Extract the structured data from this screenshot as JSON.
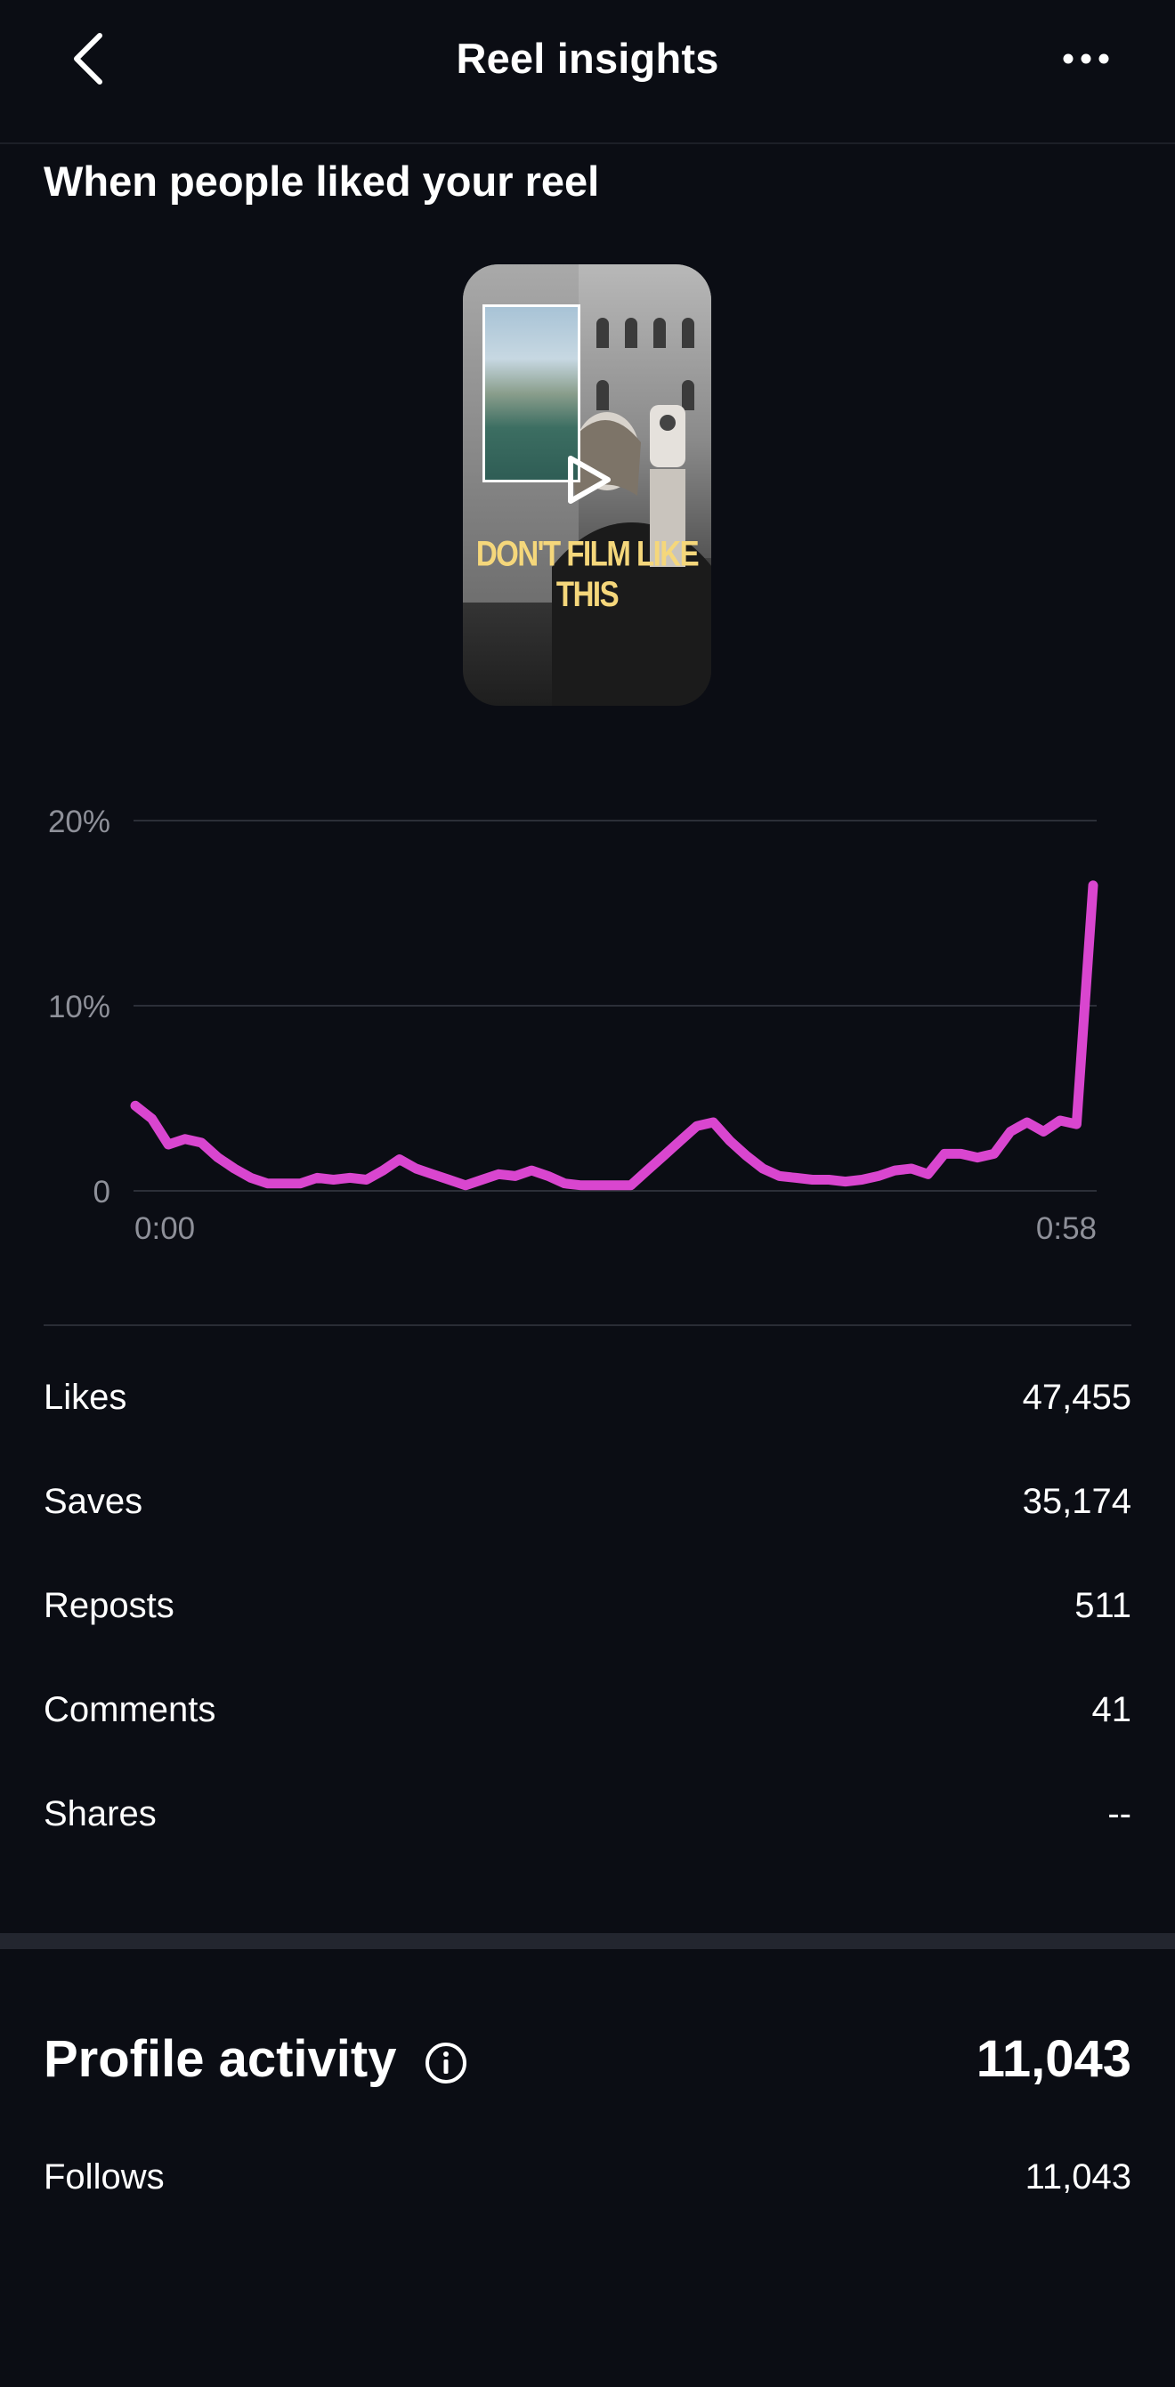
{
  "header": {
    "title": "Reel insights",
    "back_icon": "chevron-left-icon",
    "more_icon": "more-horizontal-icon"
  },
  "likes_section": {
    "title": "When people liked your reel",
    "thumbnail": {
      "caption": "DON'T FILM LIKE THIS",
      "play_icon": "play-icon"
    }
  },
  "chart_data": {
    "type": "line",
    "title": "",
    "xlabel": "",
    "ylabel": "",
    "ylim": [
      0,
      20
    ],
    "xlim": [
      0,
      58
    ],
    "y_ticks": [
      "20%",
      "10%",
      "0"
    ],
    "y_tick_values": [
      20,
      10,
      0
    ],
    "x_ticks": [
      "0:00",
      "0:58"
    ],
    "x_tick_values": [
      0,
      58
    ],
    "grid": true,
    "color": "#d946cf",
    "series": [
      {
        "values": [
          [
            0,
            4.6
          ],
          [
            1,
            3.9
          ],
          [
            2,
            2.5
          ],
          [
            3,
            2.8
          ],
          [
            4,
            2.6
          ],
          [
            5,
            1.8
          ],
          [
            6,
            1.2
          ],
          [
            7,
            0.7
          ],
          [
            8,
            0.4
          ],
          [
            9,
            0.4
          ],
          [
            10,
            0.4
          ],
          [
            11,
            0.7
          ],
          [
            12,
            0.6
          ],
          [
            13,
            0.7
          ],
          [
            14,
            0.6
          ],
          [
            15,
            1.1
          ],
          [
            16,
            1.7
          ],
          [
            17,
            1.2
          ],
          [
            18,
            0.9
          ],
          [
            19,
            0.6
          ],
          [
            20,
            0.3
          ],
          [
            21,
            0.6
          ],
          [
            22,
            0.9
          ],
          [
            23,
            0.8
          ],
          [
            24,
            1.1
          ],
          [
            25,
            0.8
          ],
          [
            26,
            0.4
          ],
          [
            27,
            0.3
          ],
          [
            28,
            0.3
          ],
          [
            29,
            0.3
          ],
          [
            30,
            0.3
          ],
          [
            31,
            1.1
          ],
          [
            32,
            1.9
          ],
          [
            33,
            2.7
          ],
          [
            34,
            3.5
          ],
          [
            35,
            3.7
          ],
          [
            36,
            2.7
          ],
          [
            37,
            1.9
          ],
          [
            38,
            1.2
          ],
          [
            39,
            0.8
          ],
          [
            40,
            0.7
          ],
          [
            41,
            0.6
          ],
          [
            42,
            0.6
          ],
          [
            43,
            0.5
          ],
          [
            44,
            0.6
          ],
          [
            45,
            0.8
          ],
          [
            46,
            1.1
          ],
          [
            47,
            1.2
          ],
          [
            48,
            0.9
          ],
          [
            49,
            2.0
          ],
          [
            50,
            2.0
          ],
          [
            51,
            1.8
          ],
          [
            52,
            2.0
          ],
          [
            53,
            3.2
          ],
          [
            54,
            3.7
          ],
          [
            55,
            3.2
          ],
          [
            56,
            3.8
          ],
          [
            57,
            3.6
          ],
          [
            58,
            16.5
          ]
        ]
      }
    ]
  },
  "stats": [
    {
      "label": "Likes",
      "value": "47,455"
    },
    {
      "label": "Saves",
      "value": "35,174"
    },
    {
      "label": "Reposts",
      "value": "511"
    },
    {
      "label": "Comments",
      "value": "41"
    },
    {
      "label": "Shares",
      "value": "--"
    }
  ],
  "profile_activity": {
    "title": "Profile activity",
    "info_icon": "info-icon",
    "total": "11,043",
    "rows": [
      {
        "label": "Follows",
        "value": "11,043"
      }
    ]
  },
  "colors": {
    "background": "#0b0d14",
    "accent_line": "#d946cf",
    "caption_yellow": "#f5d77b",
    "divider": "#2a2d35",
    "muted_text": "#8e9099"
  }
}
